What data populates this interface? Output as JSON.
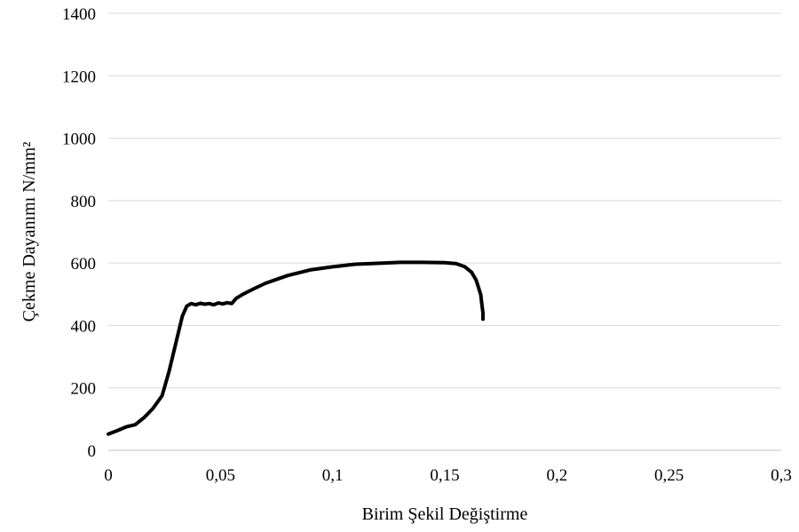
{
  "chart_data": {
    "type": "line",
    "xlabel": "Birim Şekil Değiştirme",
    "ylabel": "Çekme Dayanımı N/mm²",
    "xlim": [
      0,
      0.3
    ],
    "ylim": [
      0,
      1400
    ],
    "x_ticks": [
      0,
      0.05,
      0.1,
      0.15,
      0.2,
      0.25,
      0.3
    ],
    "x_tick_labels": [
      "0",
      "0,05",
      "0,1",
      "0,15",
      "0,2",
      "0,25",
      "0,3"
    ],
    "y_ticks": [
      0,
      200,
      400,
      600,
      800,
      1000,
      1200,
      1400
    ],
    "y_tick_labels": [
      "0",
      "200",
      "400",
      "600",
      "800",
      "1000",
      "1200",
      "1400"
    ],
    "grid": "horizontal",
    "series": [
      {
        "color": "#000000",
        "x": [
          0,
          0.004,
          0.008,
          0.012,
          0.016,
          0.02,
          0.024,
          0.027,
          0.03,
          0.033,
          0.035,
          0.037,
          0.039,
          0.041,
          0.043,
          0.045,
          0.047,
          0.049,
          0.051,
          0.053,
          0.055,
          0.057,
          0.06,
          0.065,
          0.07,
          0.08,
          0.09,
          0.1,
          0.11,
          0.12,
          0.13,
          0.14,
          0.15,
          0.155,
          0.159,
          0.162,
          0.164,
          0.166,
          0.167,
          0.167
        ],
        "y": [
          52,
          63,
          75,
          82,
          105,
          135,
          175,
          250,
          340,
          430,
          462,
          470,
          466,
          471,
          468,
          470,
          466,
          472,
          469,
          473,
          470,
          487,
          500,
          518,
          535,
          560,
          578,
          588,
          596,
          599,
          602,
          602,
          601,
          598,
          588,
          570,
          545,
          500,
          440,
          420
        ]
      }
    ]
  }
}
